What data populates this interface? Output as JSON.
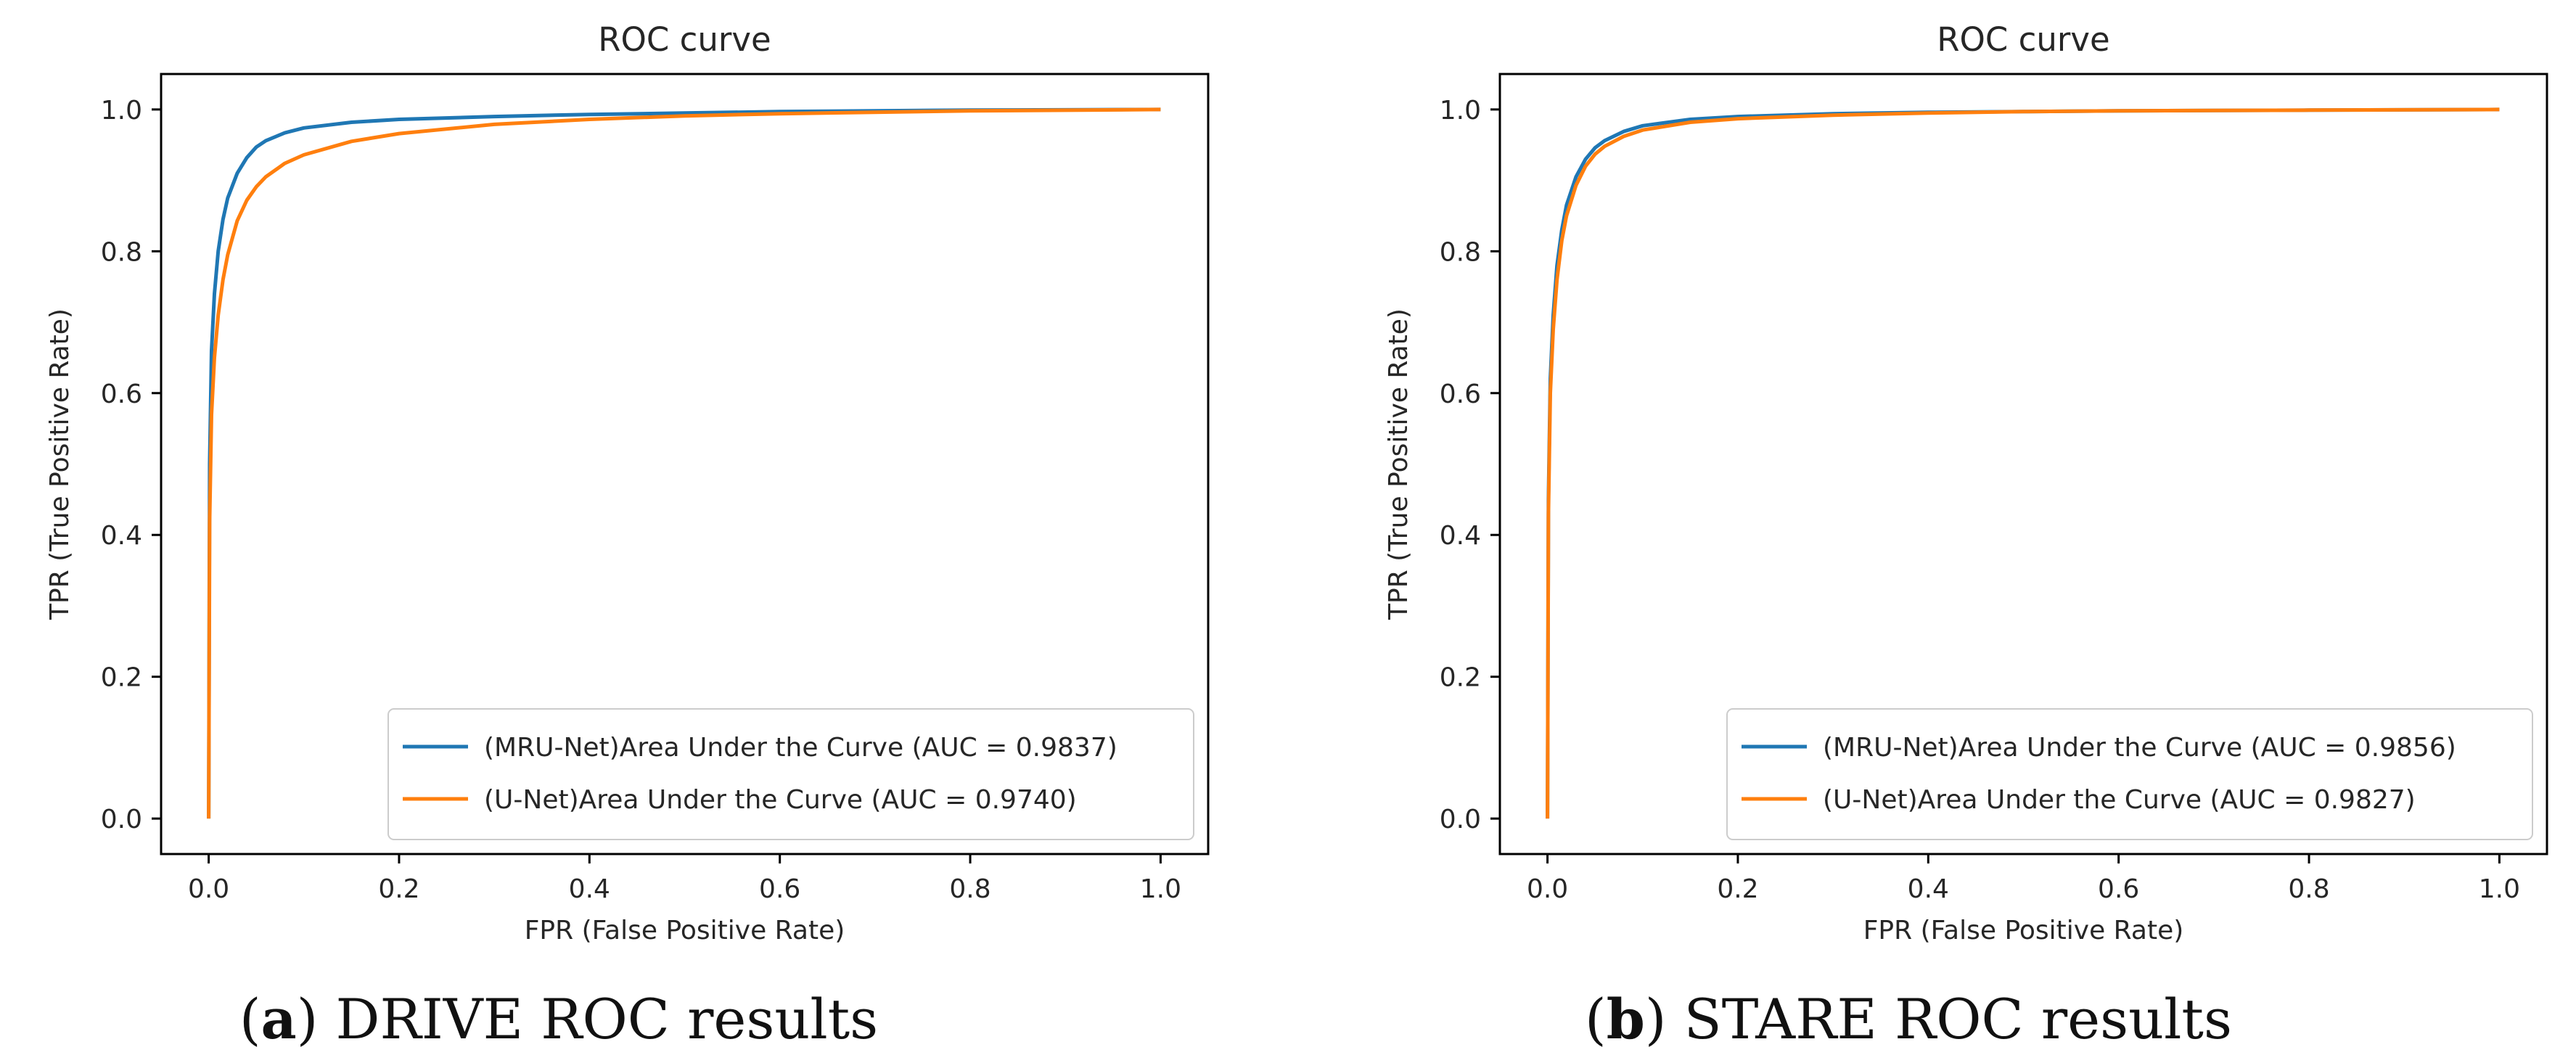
{
  "captions": [
    {
      "letter": "a",
      "text": " DRIVE ROC results"
    },
    {
      "letter": "b",
      "text": " STARE ROC results"
    }
  ],
  "chart_data": [
    {
      "type": "line",
      "title": "ROC curve",
      "xlabel": "FPR (False Positive Rate)",
      "ylabel": "TPR (True Positive Rate)",
      "xlim": [
        -0.05,
        1.05
      ],
      "ylim": [
        -0.05,
        1.05
      ],
      "xticks": [
        "0.0",
        "0.2",
        "0.4",
        "0.6",
        "0.8",
        "1.0"
      ],
      "yticks": [
        "0.0",
        "0.2",
        "0.4",
        "0.6",
        "0.8",
        "1.0"
      ],
      "grid": false,
      "legend_position": "lower-right",
      "series": [
        {
          "name": "(MRU-Net)Area Under the Curve (AUC = 0.9837)",
          "color": "#1f77b4",
          "x": [
            0,
            0.001,
            0.003,
            0.006,
            0.01,
            0.015,
            0.02,
            0.03,
            0.04,
            0.05,
            0.06,
            0.08,
            0.1,
            0.15,
            0.2,
            0.3,
            0.4,
            0.5,
            0.6,
            0.8,
            1.0
          ],
          "y": [
            0,
            0.5,
            0.66,
            0.74,
            0.8,
            0.845,
            0.875,
            0.91,
            0.932,
            0.947,
            0.956,
            0.967,
            0.974,
            0.982,
            0.986,
            0.99,
            0.993,
            0.995,
            0.997,
            0.999,
            1.0
          ]
        },
        {
          "name": "(U-Net)Area Under the Curve (AUC = 0.9740)",
          "color": "#ff7f0e",
          "x": [
            0,
            0.001,
            0.003,
            0.006,
            0.01,
            0.015,
            0.02,
            0.03,
            0.04,
            0.05,
            0.06,
            0.08,
            0.1,
            0.15,
            0.2,
            0.3,
            0.4,
            0.5,
            0.6,
            0.8,
            1.0
          ],
          "y": [
            0,
            0.42,
            0.57,
            0.65,
            0.71,
            0.76,
            0.795,
            0.843,
            0.872,
            0.891,
            0.905,
            0.924,
            0.936,
            0.955,
            0.966,
            0.979,
            0.986,
            0.991,
            0.994,
            0.998,
            1.0
          ]
        }
      ]
    },
    {
      "type": "line",
      "title": "ROC curve",
      "xlabel": "FPR (False Positive Rate)",
      "ylabel": "TPR (True Positive Rate)",
      "xlim": [
        -0.05,
        1.05
      ],
      "ylim": [
        -0.05,
        1.05
      ],
      "xticks": [
        "0.0",
        "0.2",
        "0.4",
        "0.6",
        "0.8",
        "1.0"
      ],
      "yticks": [
        "0.0",
        "0.2",
        "0.4",
        "0.6",
        "0.8",
        "1.0"
      ],
      "grid": false,
      "legend_position": "lower-right",
      "series": [
        {
          "name": "(MRU-Net)Area Under the Curve (AUC = 0.9856)",
          "color": "#1f77b4",
          "x": [
            0,
            0.001,
            0.003,
            0.006,
            0.01,
            0.015,
            0.02,
            0.03,
            0.04,
            0.05,
            0.06,
            0.08,
            0.1,
            0.15,
            0.2,
            0.3,
            0.4,
            0.5,
            0.6,
            0.8,
            1.0
          ],
          "y": [
            0,
            0.45,
            0.62,
            0.71,
            0.78,
            0.83,
            0.865,
            0.905,
            0.93,
            0.946,
            0.956,
            0.969,
            0.977,
            0.986,
            0.99,
            0.994,
            0.996,
            0.997,
            0.998,
            0.999,
            1.0
          ]
        },
        {
          "name": "(U-Net)Area Under the Curve (AUC = 0.9827)",
          "color": "#ff7f0e",
          "x": [
            0,
            0.001,
            0.003,
            0.006,
            0.01,
            0.015,
            0.02,
            0.03,
            0.04,
            0.05,
            0.06,
            0.08,
            0.1,
            0.15,
            0.2,
            0.3,
            0.4,
            0.5,
            0.6,
            0.8,
            1.0
          ],
          "y": [
            0,
            0.43,
            0.6,
            0.69,
            0.76,
            0.815,
            0.85,
            0.893,
            0.92,
            0.937,
            0.948,
            0.962,
            0.971,
            0.982,
            0.987,
            0.992,
            0.995,
            0.997,
            0.998,
            0.999,
            1.0
          ]
        }
      ]
    }
  ]
}
